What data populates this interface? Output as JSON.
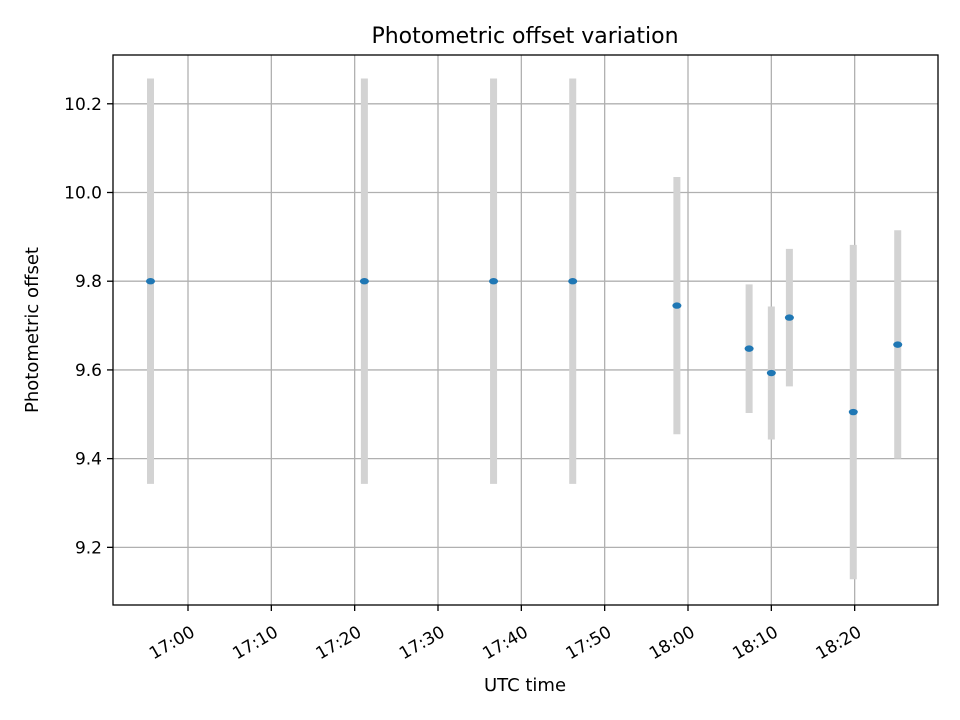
{
  "chart_data": {
    "type": "scatter",
    "title": "Photometric offset variation",
    "xlabel": "UTC time",
    "ylabel": "Photometric offset",
    "x_tick_labels": [
      "17:00",
      "17:10",
      "17:20",
      "17:30",
      "17:40",
      "17:50",
      "18:00",
      "18:10",
      "18:20"
    ],
    "y_tick_labels": [
      "9.2",
      "9.4",
      "9.6",
      "9.8",
      "10.0",
      "10.2"
    ],
    "xlim": [
      "16:51",
      "18:30"
    ],
    "ylim": [
      9.07,
      10.31
    ],
    "grid": true,
    "legend": false,
    "series": [
      {
        "x": [
          "16:55:30",
          "17:21:10",
          "17:36:40",
          "17:46:10",
          "17:58:40",
          "18:07:20",
          "18:10:00",
          "18:12:10",
          "18:19:50",
          "18:25:10"
        ],
        "y": [
          9.8,
          9.8,
          9.8,
          9.8,
          9.745,
          9.648,
          9.593,
          9.718,
          9.505,
          9.657
        ],
        "yerr_low": [
          9.343,
          9.343,
          9.343,
          9.343,
          9.455,
          9.503,
          9.443,
          9.563,
          9.128,
          9.4
        ],
        "yerr_high": [
          10.257,
          10.257,
          10.257,
          10.257,
          10.035,
          9.793,
          9.743,
          9.873,
          9.882,
          9.915
        ]
      }
    ],
    "colors": {
      "marker": "#1f77b4",
      "errorbar": "#d3d3d3",
      "grid": "#b0b0b0",
      "axes": "#000000"
    }
  }
}
